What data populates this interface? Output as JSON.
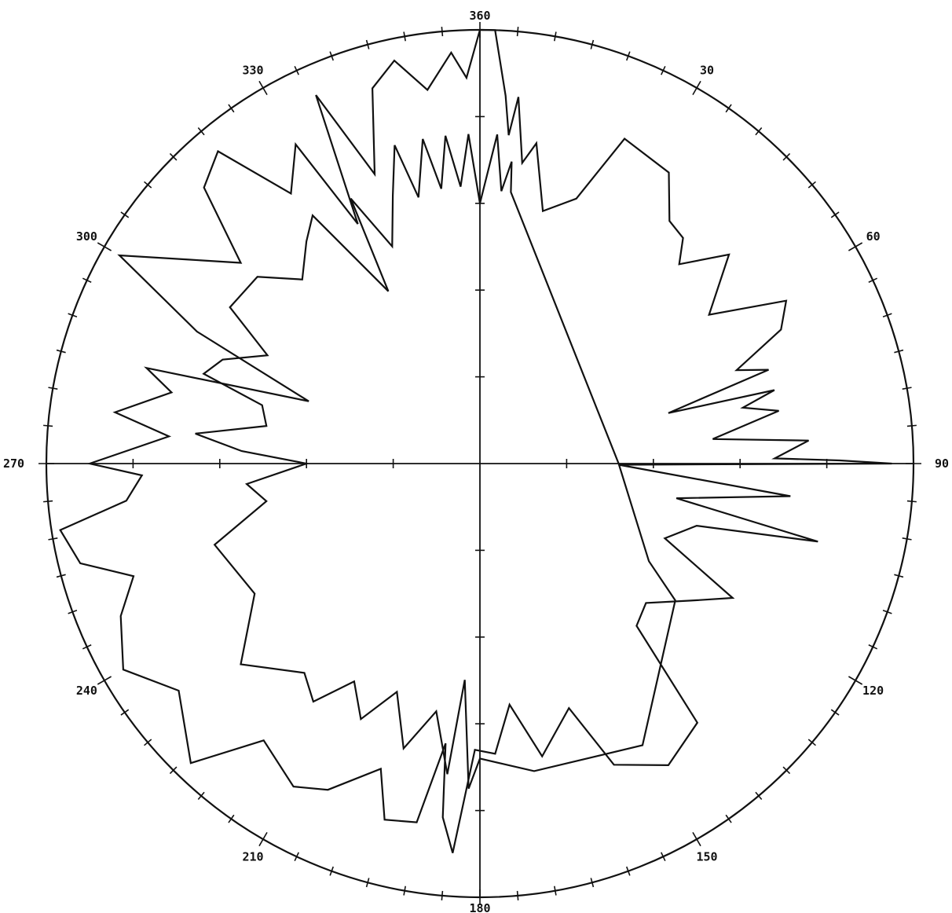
{
  "chart_data": {
    "type": "line",
    "coordinate_system": "polar",
    "angle_direction": "clockwise",
    "zero_at": "top",
    "r_max": 10,
    "r_ticks": [
      2,
      4,
      6,
      8
    ],
    "angle_ticks_minor_step": 5,
    "angle_labels": [
      {
        "angle": 0,
        "text": "360"
      },
      {
        "angle": 30,
        "text": "30"
      },
      {
        "angle": 60,
        "text": "60"
      },
      {
        "angle": 90,
        "text": "90"
      },
      {
        "angle": 120,
        "text": "120"
      },
      {
        "angle": 150,
        "text": "150"
      },
      {
        "angle": 180,
        "text": "180"
      },
      {
        "angle": 210,
        "text": "210"
      },
      {
        "angle": 240,
        "text": "240"
      },
      {
        "angle": 270,
        "text": "270"
      },
      {
        "angle": 300,
        "text": "300"
      },
      {
        "angle": 330,
        "text": "330"
      }
    ],
    "grid": false,
    "series": [
      {
        "color": "#111111",
        "points": [
          [
            0,
            10.0
          ],
          [
            2,
            10.0
          ],
          [
            4,
            8.5
          ],
          [
            5,
            7.6
          ],
          [
            6,
            8.5
          ],
          [
            8,
            7.0
          ],
          [
            10,
            7.5
          ],
          [
            14,
            6.0
          ],
          [
            20,
            6.5
          ],
          [
            24,
            8.2
          ],
          [
            33,
            8.0
          ],
          [
            38,
            7.1
          ],
          [
            42,
            7.0
          ],
          [
            45,
            6.5
          ],
          [
            50,
            7.5
          ],
          [
            57,
            6.3
          ],
          [
            62,
            8.0
          ],
          [
            66,
            7.6
          ],
          [
            70,
            6.3
          ],
          [
            72,
            7.0
          ],
          [
            75,
            4.5
          ],
          [
            76,
            7.0
          ],
          [
            78,
            6.2
          ],
          [
            80,
            7.0
          ],
          [
            84,
            5.4
          ],
          [
            86,
            7.6
          ],
          [
            89,
            6.8
          ],
          [
            89.5,
            8.3
          ],
          [
            90,
            9.5
          ],
          [
            90.5,
            3.2
          ],
          [
            96,
            7.2
          ],
          [
            100,
            4.6
          ],
          [
            103,
            8.0
          ],
          [
            106,
            5.2
          ],
          [
            112,
            4.6
          ],
          [
            118,
            6.6
          ],
          [
            123,
            5.8
          ],
          [
            130,
            5.0
          ],
          [
            136,
            5.2
          ],
          [
            140,
            7.8
          ],
          [
            148,
            8.2
          ],
          [
            156,
            7.6
          ],
          [
            160,
            6.0
          ],
          [
            168,
            6.9
          ],
          [
            173,
            5.6
          ],
          [
            177,
            6.7
          ],
          [
            181,
            6.6
          ],
          [
            184,
            9.0
          ],
          [
            186,
            8.2
          ],
          [
            187,
            6.5
          ],
          [
            190,
            8.4
          ],
          [
            195,
            8.5
          ],
          [
            198,
            7.4
          ],
          [
            205,
            8.3
          ],
          [
            210,
            8.6
          ],
          [
            218,
            8.1
          ],
          [
            224,
            9.6
          ],
          [
            233,
            8.7
          ],
          [
            240,
            9.5
          ],
          [
            247,
            9.0
          ],
          [
            252,
            8.4
          ],
          [
            256,
            9.5
          ],
          [
            261,
            9.8
          ],
          [
            264,
            8.2
          ],
          [
            268,
            7.8
          ],
          [
            270,
            9.0
          ],
          [
            275,
            7.2
          ],
          [
            278,
            8.5
          ],
          [
            283,
            7.3
          ],
          [
            286,
            8.0
          ],
          [
            290,
            4.2
          ],
          [
            295,
            7.2
          ],
          [
            300,
            9.6
          ],
          [
            305,
            8.2
          ],
          [
            310,
            7.2
          ],
          [
            315,
            9.0
          ],
          [
            320,
            9.4
          ],
          [
            325,
            7.6
          ],
          [
            330,
            8.5
          ],
          [
            333,
            6.2
          ],
          [
            336,
            9.3
          ],
          [
            340,
            7.1
          ],
          [
            344,
            9.0
          ],
          [
            348,
            9.5
          ],
          [
            352,
            8.7
          ],
          [
            356,
            9.5
          ],
          [
            358,
            8.9
          ],
          [
            360,
            10.0
          ]
        ]
      },
      {
        "color": "#111111",
        "points": [
          [
            0,
            6.0
          ],
          [
            3,
            7.6
          ],
          [
            4.5,
            6.3
          ],
          [
            6,
            7.0
          ],
          [
            6.5,
            6.3
          ],
          [
            90,
            3.2
          ],
          [
            120,
            4.5
          ],
          [
            125,
            5.5
          ],
          [
            150,
            7.5
          ],
          [
            170,
            7.2
          ],
          [
            180,
            6.8
          ],
          [
            182,
            7.5
          ],
          [
            184,
            5.0
          ],
          [
            186,
            7.2
          ],
          [
            190,
            5.8
          ],
          [
            195,
            6.8
          ],
          [
            200,
            5.6
          ],
          [
            205,
            6.5
          ],
          [
            210,
            5.8
          ],
          [
            215,
            6.7
          ],
          [
            220,
            6.3
          ],
          [
            230,
            7.2
          ],
          [
            240,
            6.0
          ],
          [
            253,
            6.4
          ],
          [
            260,
            5.0
          ],
          [
            265,
            5.4
          ],
          [
            270,
            4.0
          ],
          [
            273,
            5.5
          ],
          [
            276,
            6.6
          ],
          [
            280,
            5.0
          ],
          [
            285,
            5.2
          ],
          [
            288,
            6.7
          ],
          [
            292,
            6.4
          ],
          [
            297,
            5.5
          ],
          [
            302,
            6.8
          ],
          [
            310,
            6.7
          ],
          [
            316,
            5.9
          ],
          [
            322,
            6.5
          ],
          [
            326,
            6.9
          ],
          [
            332,
            4.5
          ],
          [
            334,
            6.8
          ],
          [
            338,
            5.4
          ],
          [
            342,
            6.5
          ],
          [
            345,
            7.6
          ],
          [
            347,
            6.3
          ],
          [
            350,
            7.6
          ],
          [
            352,
            6.4
          ],
          [
            354,
            7.6
          ],
          [
            356,
            6.4
          ],
          [
            358,
            7.6
          ],
          [
            360,
            6.0
          ]
        ]
      }
    ]
  }
}
